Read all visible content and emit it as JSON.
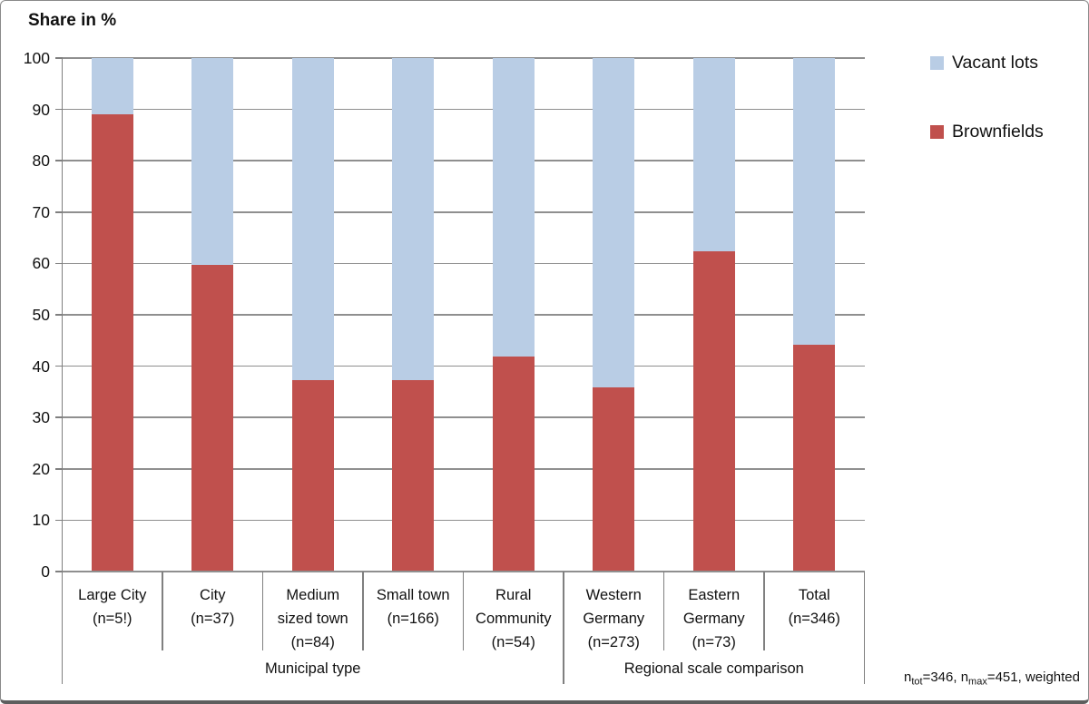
{
  "chart_data": {
    "type": "bar",
    "stacked": true,
    "title": "Share in %",
    "xlabel": "",
    "ylabel": "Share in %",
    "ylim": [
      0,
      100
    ],
    "ytick_step": 10,
    "grid": true,
    "legend_position": "top-right",
    "categories": [
      "Large City\n(n=5!)",
      "City\n(n=37)",
      "Medium\nsized town\n(n=84)",
      "Small town\n(n=166)",
      "Rural\nCommunity\n(n=54)",
      "Western\nGermany\n(n=273)",
      "Eastern\nGermany\n(n=73)",
      "Total\n(n=346)"
    ],
    "series": [
      {
        "name": "Brownfields",
        "color": "#C0504D",
        "values": [
          89.0,
          59.7,
          37.3,
          37.3,
          41.9,
          35.9,
          62.3,
          44.2
        ]
      },
      {
        "name": "Vacant lots",
        "color": "#B9CDE5",
        "values": [
          11.0,
          40.3,
          62.7,
          62.7,
          58.1,
          64.1,
          37.7,
          55.8
        ]
      }
    ],
    "legend": [
      {
        "label": "Vacant lots",
        "color": "#B9CDE5"
      },
      {
        "label": "Brownfields",
        "color": "#C0504D"
      }
    ],
    "groups": [
      {
        "label": "Municipal type",
        "from": 0,
        "to": 5
      },
      {
        "label": "Regional scale comparison",
        "from": 5,
        "to": 8
      }
    ],
    "footnote_parts": [
      {
        "text": "n"
      },
      {
        "sub": "tot"
      },
      {
        "text": "=346, n"
      },
      {
        "sub": "max"
      },
      {
        "text": "=451, weighted"
      }
    ]
  },
  "colors": {
    "brownfields": "#C0504D",
    "vacant_lots": "#B9CDE5",
    "gridline": "#8F8F8F",
    "axis": "#7F7F7F",
    "text": "#1A1A1A",
    "background": "#FFFFFF",
    "border": "#8A8A8A"
  }
}
